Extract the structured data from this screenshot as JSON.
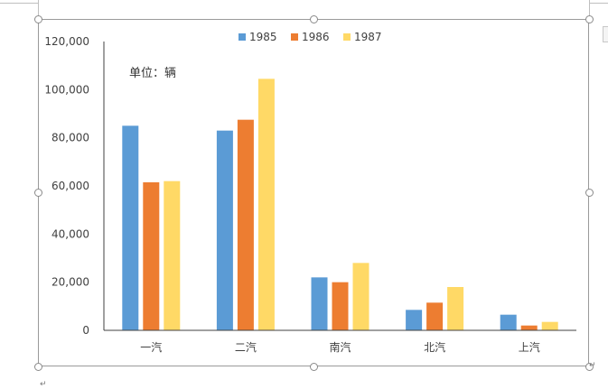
{
  "chart_data": {
    "type": "bar",
    "title": "",
    "xlabel": "",
    "ylabel": "",
    "annotation": "单位：辆",
    "categories": [
      "一汽",
      "二汽",
      "南汽",
      "北汽",
      "上汽"
    ],
    "series": [
      {
        "name": "1985",
        "color": "#5B9BD5",
        "values": [
          85000,
          83000,
          22000,
          8500,
          6500
        ]
      },
      {
        "name": "1986",
        "color": "#ED7D31",
        "values": [
          61500,
          87500,
          20000,
          11500,
          2000
        ]
      },
      {
        "name": "1987",
        "color": "#FFD966",
        "values": [
          62000,
          104500,
          28000,
          18000,
          3500
        ]
      }
    ],
    "yticks": [
      0,
      20000,
      40000,
      60000,
      80000,
      100000,
      120000
    ],
    "ytick_labels": [
      "0",
      "20,000",
      "40,000",
      "60,000",
      "80,000",
      "100,000",
      "120,000"
    ],
    "ylim": [
      0,
      120000
    ],
    "grid": false,
    "legend_position": "top-center"
  },
  "editor": {
    "return_mark": "↵",
    "return_mark_small": "↵"
  }
}
